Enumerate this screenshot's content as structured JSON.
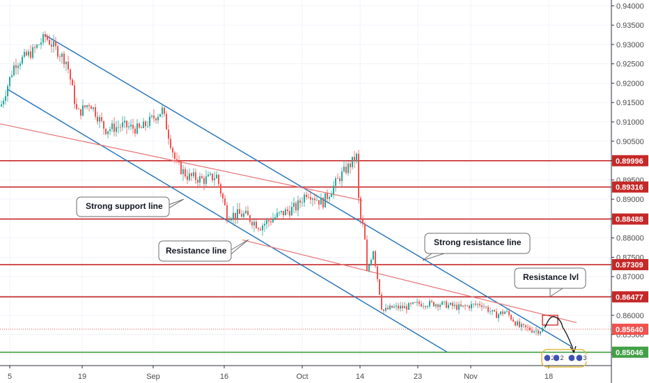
{
  "chart_data": {
    "type": "candlestick",
    "y_ticks": [
      "0.94000",
      "0.93500",
      "0.93000",
      "0.92500",
      "0.92000",
      "0.91500",
      "0.91000",
      "0.90500",
      "0.90000",
      "0.89500",
      "0.89000",
      "0.88500",
      "0.88000",
      "0.87500",
      "0.87000",
      "0.86500",
      "0.86000",
      "0.85500",
      "0.85000"
    ],
    "y_tick_values": [
      0.94,
      0.935,
      0.93,
      0.925,
      0.92,
      0.915,
      0.91,
      0.905,
      0.9,
      0.895,
      0.89,
      0.885,
      0.88,
      0.875,
      0.87,
      0.865,
      0.86,
      0.855,
      0.85
    ],
    "ylim": [
      0.847,
      0.9415
    ],
    "x_ticks": [
      "5",
      "19",
      "Sep",
      "16",
      "Oct",
      "14",
      "23",
      "Nov",
      "18"
    ],
    "price_levels": [
      {
        "label": "0.89996",
        "value": 0.89996,
        "color": "#c62828"
      },
      {
        "label": "0.89316",
        "value": 0.89316,
        "color": "#c62828"
      },
      {
        "label": "0.88488",
        "value": 0.88488,
        "color": "#c62828"
      },
      {
        "label": "0.87309",
        "value": 0.87309,
        "color": "#c62828"
      },
      {
        "label": "0.86477",
        "value": 0.86477,
        "color": "#c62828"
      },
      {
        "label": "0.85640",
        "value": 0.8564,
        "color": "#ef5350",
        "current": true
      },
      {
        "label": "0.85046",
        "value": 0.85046,
        "color": "#43a047"
      }
    ],
    "annotations": [
      {
        "text": "Strong support line"
      },
      {
        "text": "Resistance line"
      },
      {
        "text": "Strong resistance line"
      },
      {
        "text": "Resistance lvl"
      }
    ],
    "event_markers": [
      "2",
      "2",
      "3",
      "3"
    ],
    "colors": {
      "up": "#26a69a",
      "down": "#ef5350",
      "channel": "#1e6fb8",
      "trend": "#e57373"
    }
  }
}
